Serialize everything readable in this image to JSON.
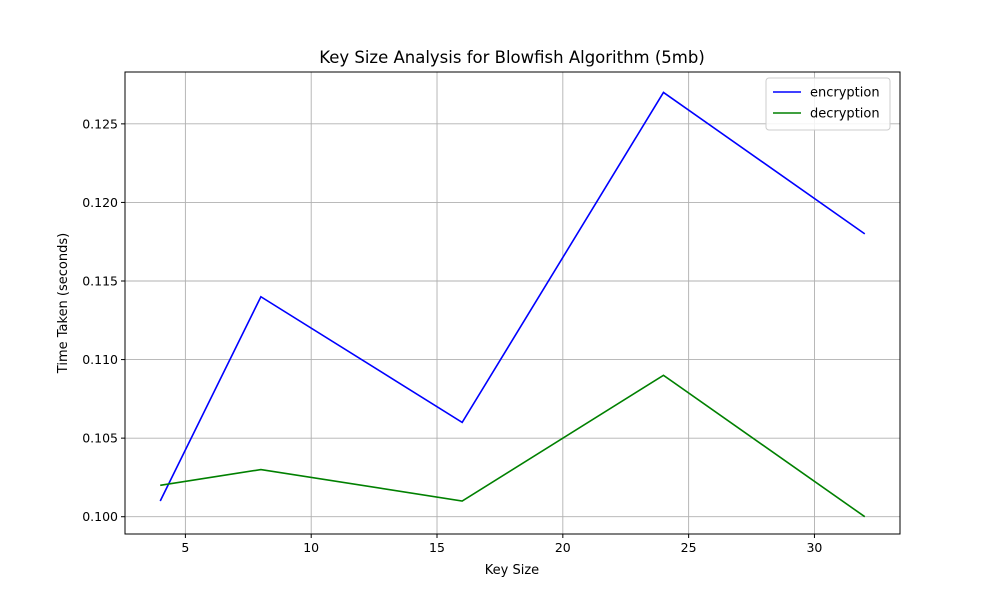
{
  "chart_data": {
    "type": "line",
    "title": "Key Size Analysis for Blowfish Algorithm (5mb)",
    "xlabel": "Key Size",
    "ylabel": "Time Taken (seconds)",
    "x": [
      4,
      8,
      16,
      24,
      32
    ],
    "series": [
      {
        "name": "encryption",
        "color": "#0000ff",
        "values": [
          0.101,
          0.114,
          0.106,
          0.127,
          0.118
        ]
      },
      {
        "name": "decryption",
        "color": "#008000",
        "values": [
          0.102,
          0.103,
          0.101,
          0.109,
          0.1
        ]
      }
    ],
    "xlim": [
      2.6,
      33.4
    ],
    "ylim": [
      0.0989,
      0.1283
    ],
    "xticks": [
      5,
      10,
      15,
      20,
      25,
      30
    ],
    "xtick_labels": [
      "5",
      "10",
      "15",
      "20",
      "25",
      "30"
    ],
    "yticks": [
      0.1,
      0.105,
      0.11,
      0.115,
      0.12,
      0.125
    ],
    "ytick_labels": [
      "0.100",
      "0.105",
      "0.110",
      "0.115",
      "0.120",
      "0.125"
    ],
    "grid": true,
    "legend_position": "top-right"
  }
}
